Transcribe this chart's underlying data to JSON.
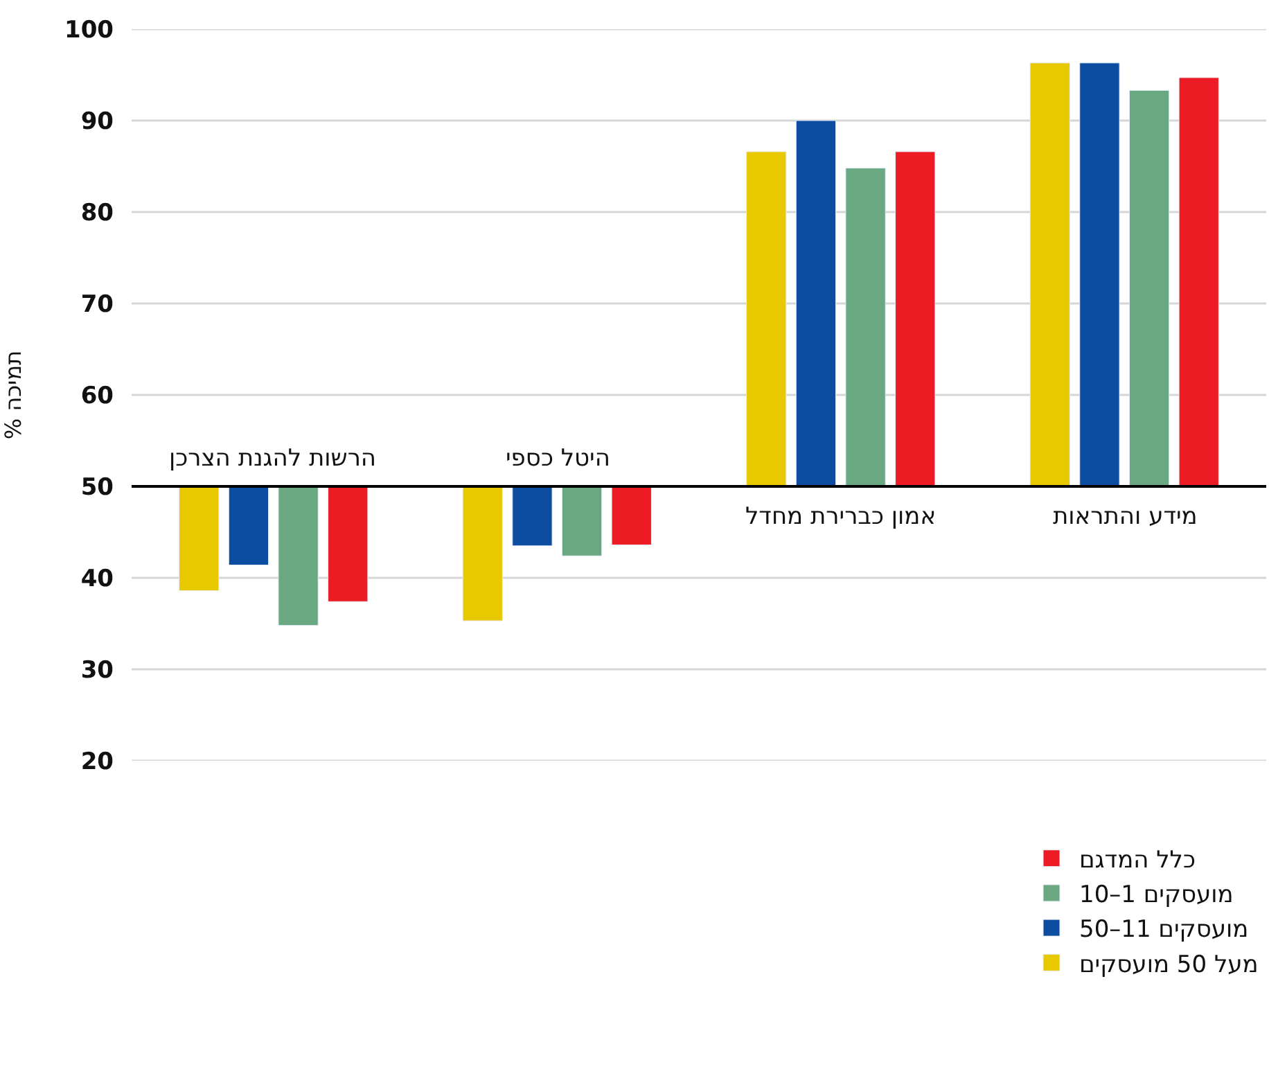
{
  "chart_data": {
    "type": "bar",
    "ylabel": "% תמיכה",
    "categories": [
      "הרשות להגנת הצרכן",
      "היטל כספי",
      "אמון כברירת מחדל",
      "מידע והתראות"
    ],
    "series": [
      {
        "name": "מעל 50 מועסקים",
        "color": "#e8c900",
        "base": [
          50,
          50,
          50,
          50
        ],
        "values": [
          -11.4,
          -14.7,
          36.6,
          46.3
        ]
      },
      {
        "name": "50–11 מועסקים",
        "color": "#0d4da1",
        "base": [
          50,
          50,
          50,
          50
        ],
        "values": [
          -8.6,
          -6.5,
          40.0,
          46.3
        ]
      },
      {
        "name": "10–1 מועסקים",
        "color": "#6aa882",
        "base": [
          50,
          50,
          50,
          50
        ],
        "values": [
          -15.2,
          -7.6,
          34.8,
          43.3
        ]
      },
      {
        "name": "כלל המדגם",
        "color": "#ed1c24",
        "base": [
          50,
          50,
          50,
          50
        ],
        "values": [
          -12.6,
          -6.4,
          36.6,
          44.7
        ]
      }
    ],
    "ylim": [
      20,
      100
    ],
    "yticks": [
      20,
      30,
      40,
      50,
      60,
      70,
      80,
      90,
      100
    ],
    "grid": "y",
    "legend": "bottom right"
  }
}
